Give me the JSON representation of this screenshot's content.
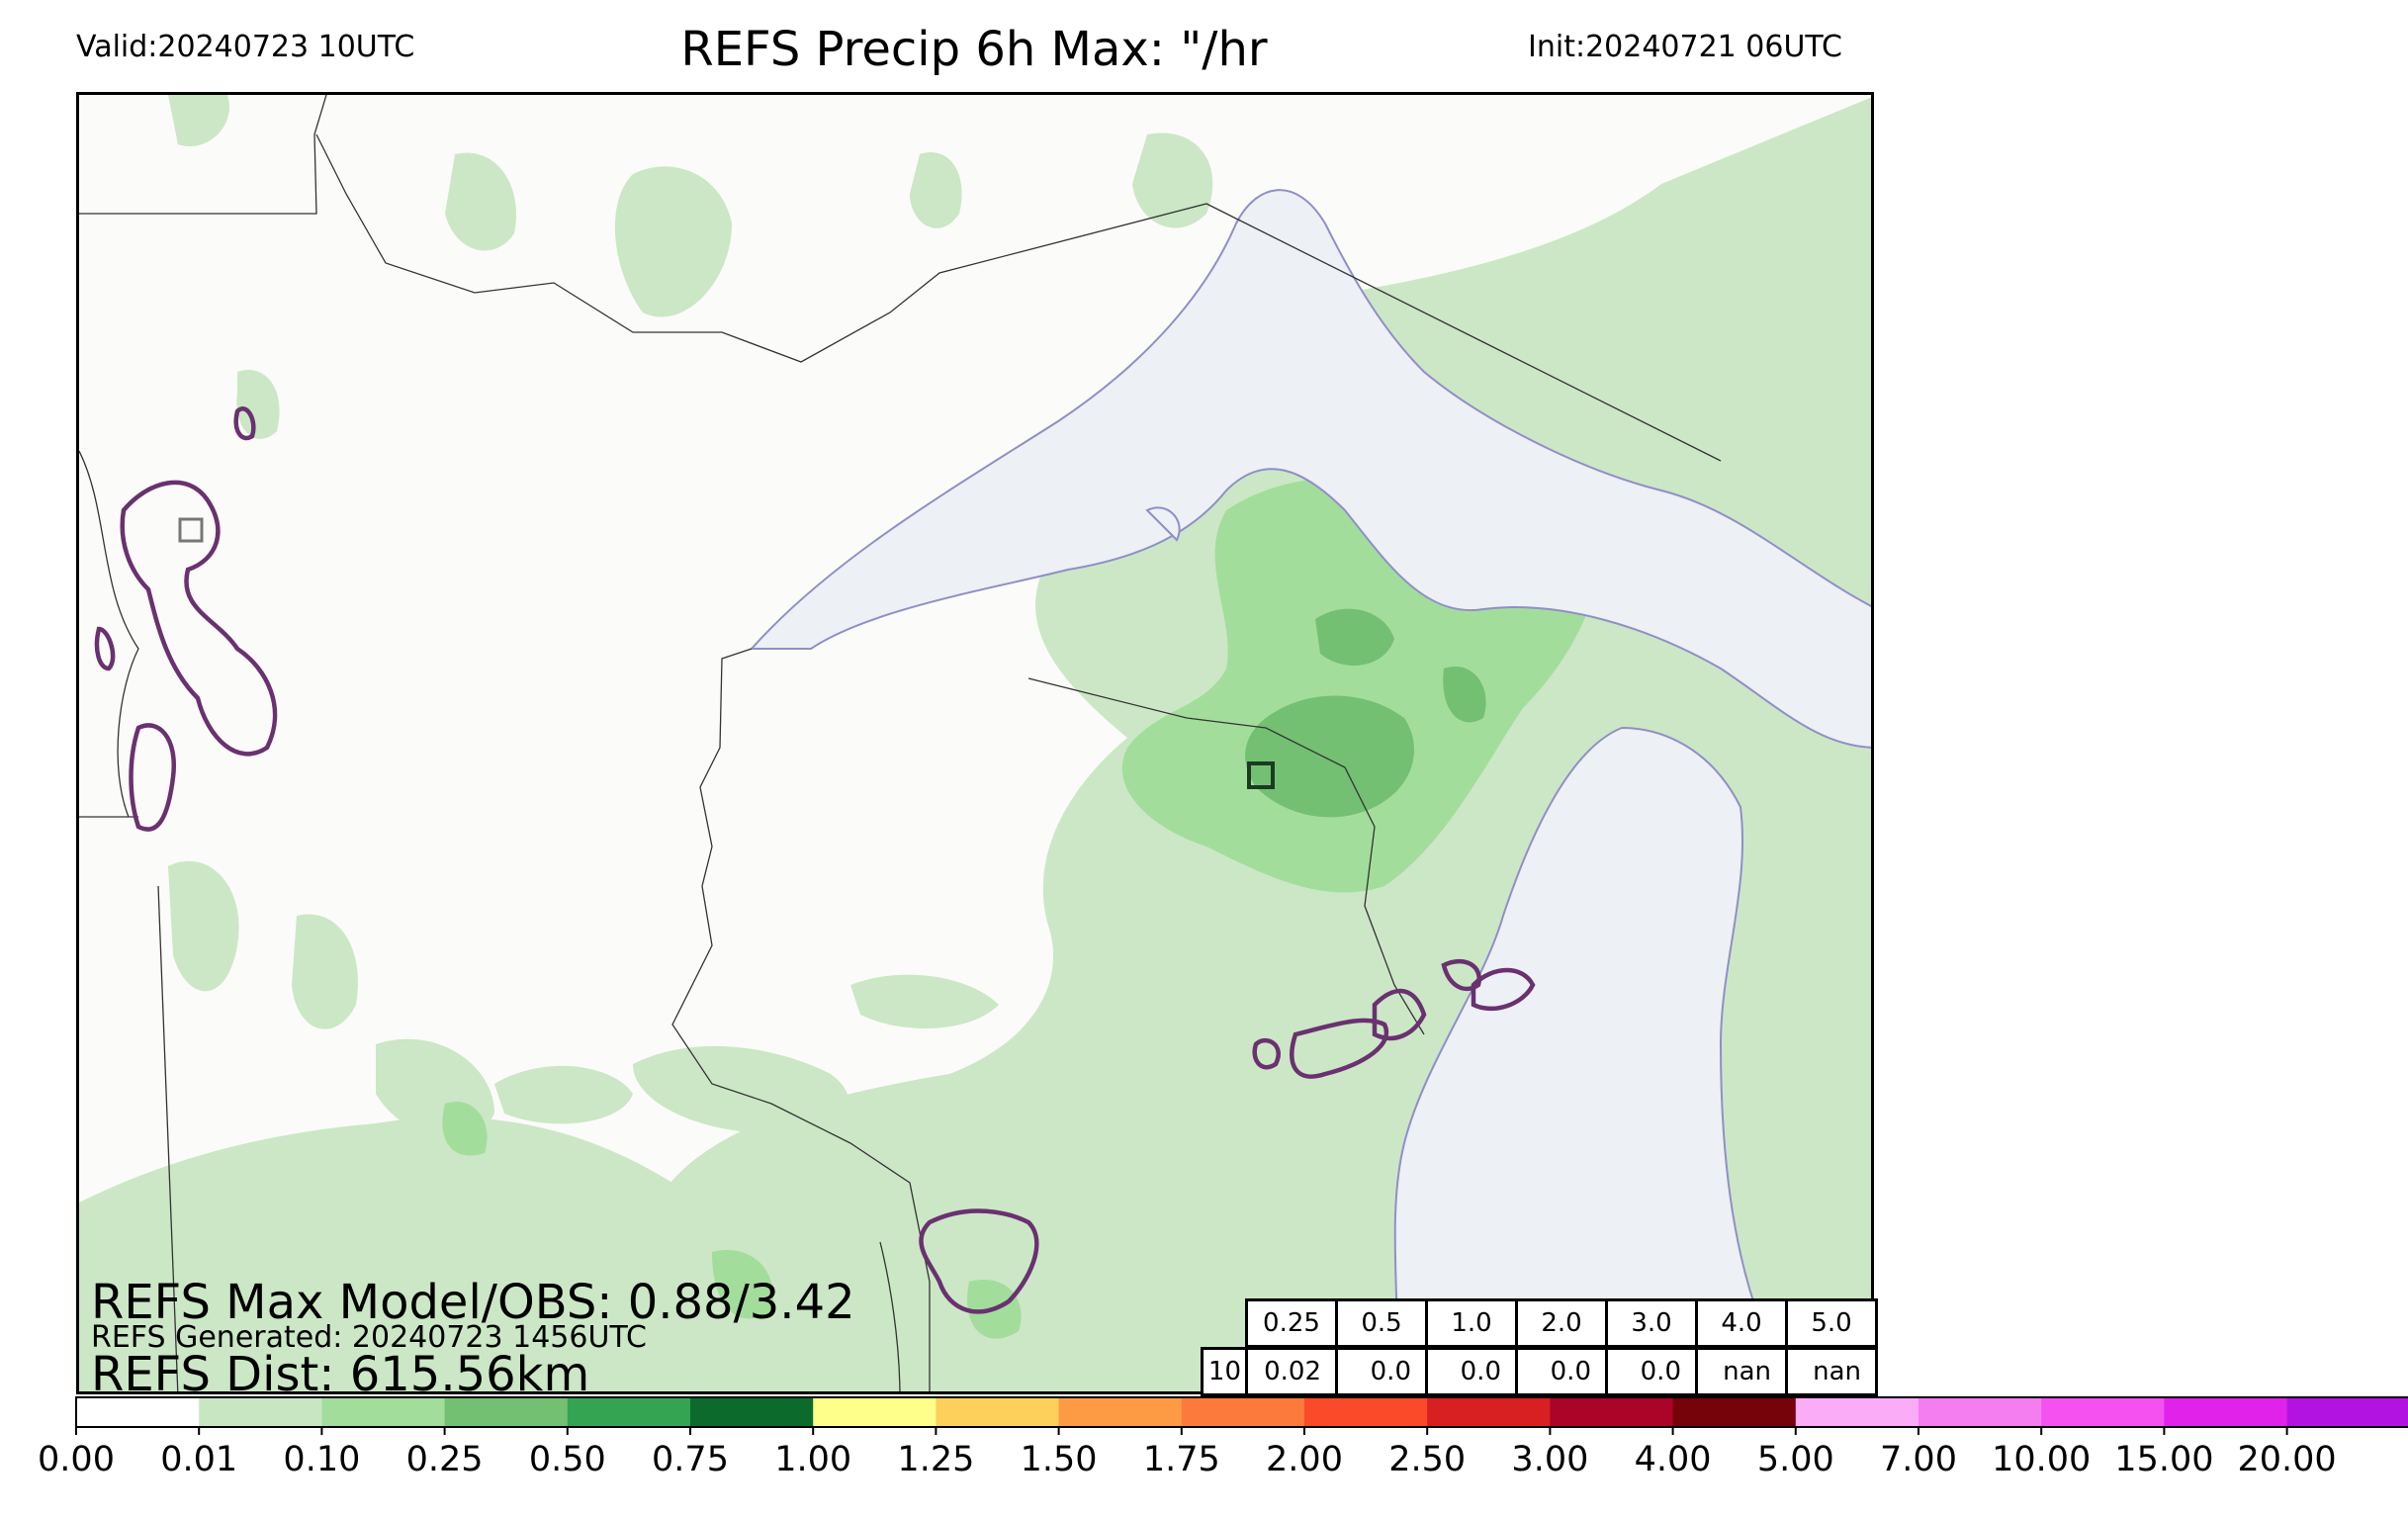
{
  "header": {
    "title": "REFS Precip 6h Max: \"/hr",
    "valid": "Valid:20240723 10UTC",
    "init": "Init:20240721 06UTC"
  },
  "stats": {
    "max_line": "REFS Max Model/OBS: 0.88/3.42",
    "generated_line": "REFS Generated: 20240723 1456UTC",
    "dist_line": "REFS Dist: 615.56km"
  },
  "table": {
    "thresholds": [
      "0.25",
      "0.5",
      "1.0",
      "2.0",
      "3.0",
      "4.0",
      "5.0"
    ],
    "row_label": "10",
    "values": [
      "0.02",
      "0.0",
      "0.0",
      "0.0",
      "0.0",
      "nan",
      "nan"
    ]
  },
  "colorbar": {
    "ticks": [
      "0.00",
      "0.01",
      "0.10",
      "0.25",
      "0.50",
      "0.75",
      "1.00",
      "1.25",
      "1.50",
      "1.75",
      "2.00",
      "2.50",
      "3.00",
      "4.00",
      "5.00",
      "7.00",
      "10.00",
      "15.00",
      "20.00"
    ],
    "colors": [
      "#ffffff",
      "#c9e6c3",
      "#a3dd9c",
      "#73c073",
      "#34a453",
      "#0c6b2c",
      "#fefe8a",
      "#fdd05b",
      "#fd9b45",
      "#fc7a3b",
      "#fa4a2a",
      "#d81f21",
      "#ac0328",
      "#750309",
      "#fbacf6",
      "#f47ef0",
      "#f550f0",
      "#e022ea",
      "#b313e0",
      "#8b09cc"
    ],
    "extend_color": "#61088c"
  },
  "map_colors": {
    "background": "#fbfbf9",
    "light_green": "#c9e6c3",
    "mid_green": "#a3dd9c",
    "dark_green": "#73c073",
    "water": "#edf0f5",
    "lake_edge": "#8f8fc7",
    "obs_contour": "#6a3170",
    "borders": "#333333"
  }
}
